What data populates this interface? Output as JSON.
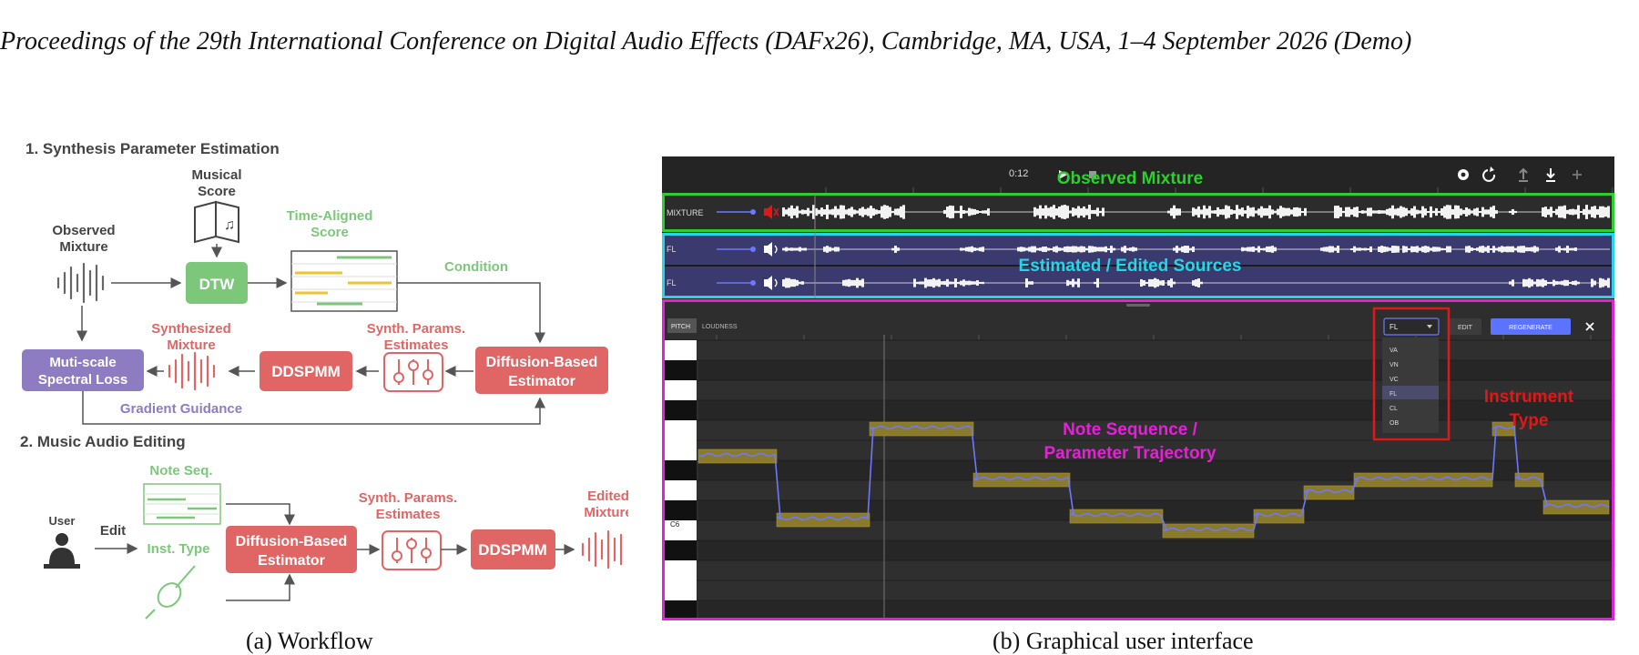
{
  "header": {
    "text": "Proceedings of the 29th International Conference on Digital Audio Effects (DAFx26), Cambridge, MA, USA, 1–4 September 2026 (Demo)"
  },
  "workflow": {
    "section1_title": "1. Synthesis Parameter Estimation",
    "musical_score_line1": "Musical",
    "musical_score_line2": "Score",
    "observed_line1": "Observed",
    "observed_line2": "Mixture",
    "dtw": "DTW",
    "aligned_line1": "Time-Aligned",
    "aligned_line2": "Score",
    "condition": "Condition",
    "synth_mix_line1": "Synthesized",
    "synth_mix_line2": "Mixture",
    "synth_params_line1": "Synth. Params.",
    "synth_params_line2": "Estimates",
    "loss_line1": "Muti-scale",
    "loss_line2": "Spectral Loss",
    "ddspmm": "DDSPMM",
    "diffusion_line1": "Diffusion-Based",
    "diffusion_line2": "Estimator",
    "gradient_guidance": "Gradient Guidance",
    "section2_title": "2. Music Audio Editing",
    "note_seq": "Note Seq.",
    "user": "User",
    "edit": "Edit",
    "inst_type": "Inst. Type",
    "edited_line1": "Edited",
    "edited_line2": "Mixture",
    "caption": "(a) Workflow"
  },
  "gui": {
    "time": "0:12",
    "observed_label": "Observed Mixture",
    "mixture_track": "MIXTURE",
    "source_track_1": "FL",
    "source_track_2": "FL",
    "sources_label": "Estimated / Edited Sources",
    "tab_pitch": "PITCH",
    "tab_loudness": "LOUDNESS",
    "instrument_select": "FL",
    "edit_button": "EDIT",
    "regenerate_button": "REGENERATE",
    "instrument_options": [
      "VA",
      "VN",
      "VC",
      "FL",
      "CL",
      "OB"
    ],
    "selected_instrument": "FL",
    "instrument_label_line1": "Instrument",
    "instrument_label_line2": "Type",
    "note_label_line1": "Note Sequence /",
    "note_label_line2": "Parameter Trajectory",
    "key_label": "C6",
    "caption": "(b) Graphical user interface",
    "colors": {
      "green": "#2bd12b",
      "cyan": "#27d5e6",
      "magenta": "#e620d8",
      "red": "#e01818",
      "note": "#8a7a2c",
      "pitch": "#6e78ff",
      "button": "#5b73ff"
    }
  }
}
